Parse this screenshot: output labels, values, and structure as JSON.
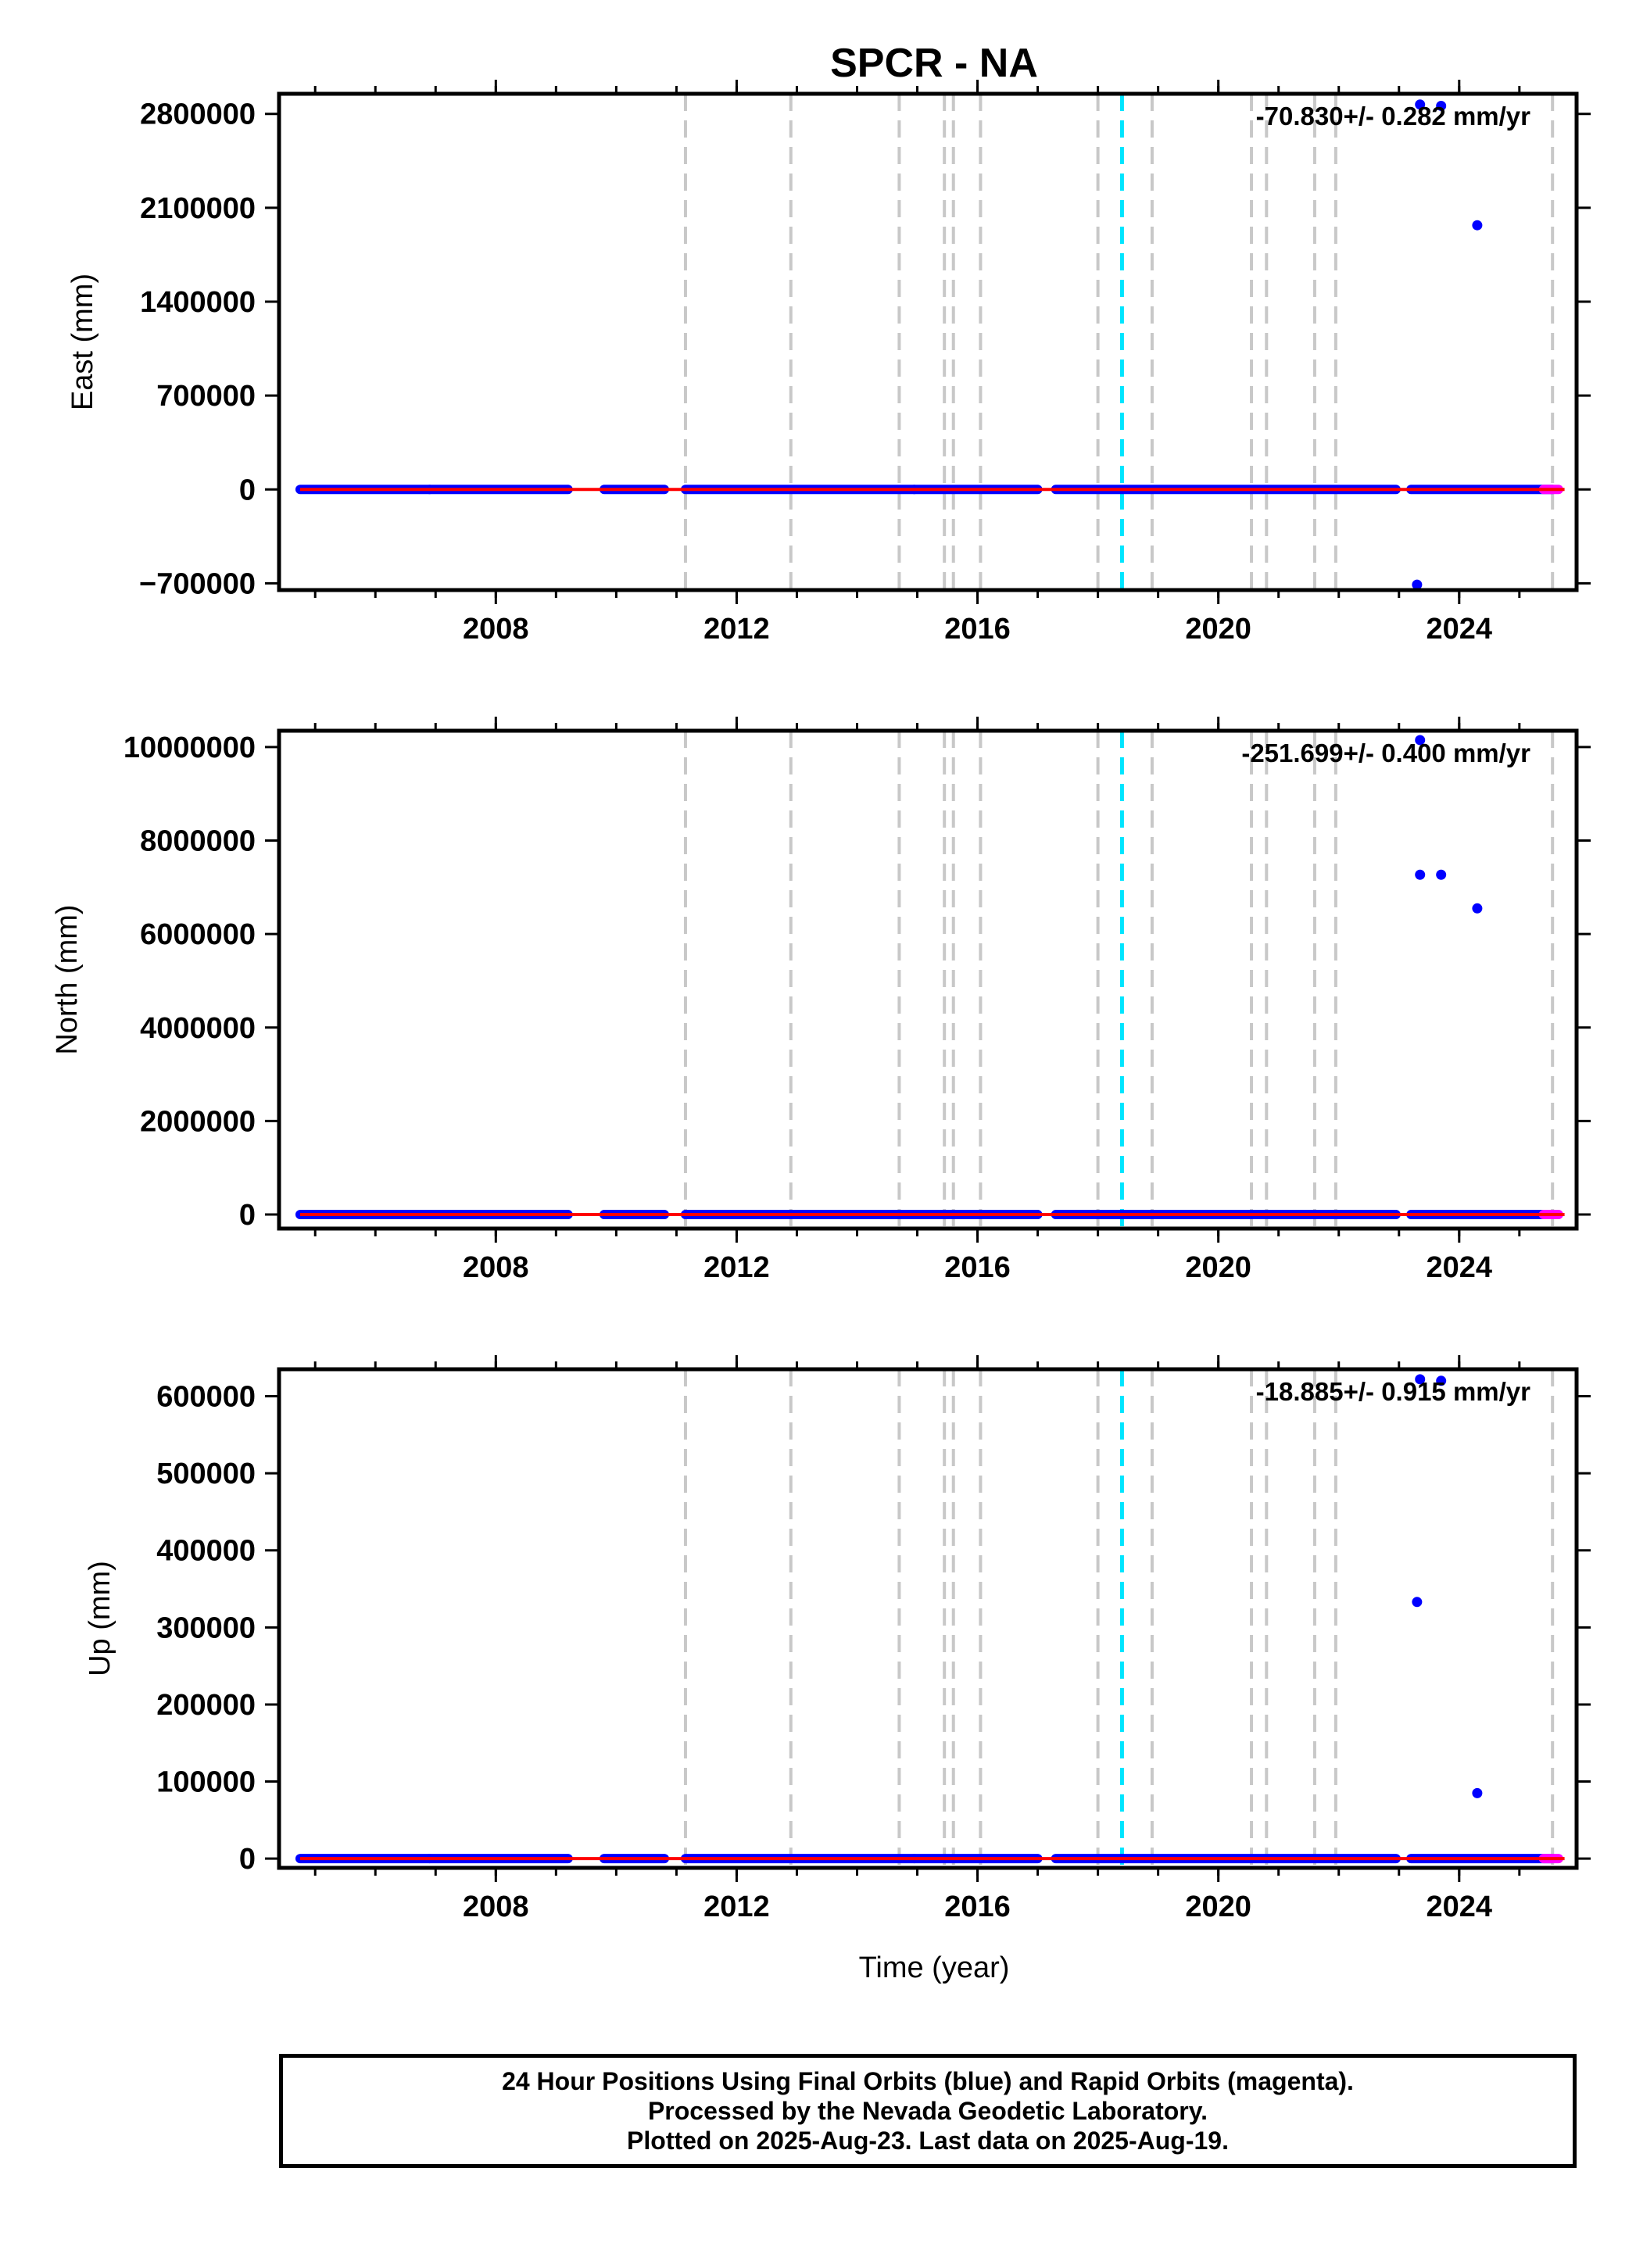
{
  "title": "SPCR - NA",
  "footer": {
    "line1": "24 Hour Positions Using Final Orbits (blue) and Rapid Orbits (magenta).",
    "line2": "Processed by the Nevada Geodetic Laboratory.",
    "line3": "Plotted on 2025-Aug-23. Last data on 2025-Aug-19."
  },
  "colors": {
    "final_orbits": "#0000ff",
    "rapid_orbits": "#ff00ff",
    "trend_line": "#ff0000",
    "steps": "#c8c8c8",
    "equipment_change": "#00e5ff"
  },
  "chart_data": [
    {
      "type": "scatter",
      "panel": "east",
      "ylabel": "East (mm)",
      "xlabel": "",
      "xlim": [
        2004.4,
        2025.95
      ],
      "ylim": [
        -750000,
        2950000
      ],
      "y_ticks": [
        -700000,
        0,
        700000,
        1400000,
        2100000,
        2800000
      ],
      "y_tick_labels": [
        "−700000",
        "0",
        "700000",
        "1400000",
        "2100000",
        "2800000"
      ],
      "x_ticks": [
        2008,
        2012,
        2016,
        2020,
        2024
      ],
      "x_tick_labels": [
        "2008",
        "2012",
        "2016",
        "2020",
        "2024"
      ],
      "annotation": "-70.830+/- 0.282 mm/yr",
      "outliers": [
        [
          2023.35,
          2870000
        ],
        [
          2023.7,
          2860000
        ],
        [
          2024.3,
          1970000
        ],
        [
          2023.3,
          -710000
        ]
      ]
    },
    {
      "type": "scatter",
      "panel": "north",
      "ylabel": "North (mm)",
      "xlabel": "",
      "xlim": [
        2004.4,
        2025.95
      ],
      "ylim": [
        -300000,
        10350000
      ],
      "y_ticks": [
        0,
        2000000,
        4000000,
        6000000,
        8000000,
        10000000
      ],
      "y_tick_labels": [
        "0",
        "2000000",
        "4000000",
        "6000000",
        "8000000",
        "10000000"
      ],
      "x_ticks": [
        2008,
        2012,
        2016,
        2020,
        2024
      ],
      "x_tick_labels": [
        "2008",
        "2012",
        "2016",
        "2020",
        "2024"
      ],
      "annotation": "-251.699+/- 0.400 mm/yr",
      "outliers": [
        [
          2023.35,
          10150000
        ],
        [
          2023.35,
          7270000
        ],
        [
          2023.7,
          7270000
        ],
        [
          2024.3,
          6550000
        ]
      ]
    },
    {
      "type": "scatter",
      "panel": "up",
      "ylabel": "Up (mm)",
      "xlabel": "Time (year)",
      "xlim": [
        2004.4,
        2025.95
      ],
      "ylim": [
        -12000,
        635000
      ],
      "y_ticks": [
        0,
        100000,
        200000,
        300000,
        400000,
        500000,
        600000
      ],
      "y_tick_labels": [
        "0",
        "100000",
        "200000",
        "300000",
        "400000",
        "500000",
        "600000"
      ],
      "x_ticks": [
        2008,
        2012,
        2016,
        2020,
        2024
      ],
      "x_tick_labels": [
        "2008",
        "2012",
        "2016",
        "2020",
        "2024"
      ],
      "annotation": "-18.885+/- 0.915 mm/yr",
      "outliers": [
        [
          2023.35,
          622000
        ],
        [
          2023.7,
          620000
        ],
        [
          2023.3,
          333000
        ],
        [
          2024.3,
          85000
        ]
      ]
    }
  ],
  "series_common": {
    "trend_x": [
      2004.75,
      2025.75
    ],
    "data_segments": [
      [
        2004.75,
        2006.9
      ],
      [
        2006.9,
        2009.2
      ],
      [
        2009.8,
        2010.8
      ],
      [
        2011.15,
        2014.95
      ],
      [
        2014.95,
        2017.0
      ],
      [
        2017.3,
        2022.95
      ],
      [
        2023.2,
        2025.55
      ]
    ],
    "rapid_x": [
      2025.4,
      2025.65
    ],
    "step_lines": [
      2011.15,
      2012.9,
      2014.7,
      2015.45,
      2015.6,
      2016.05,
      2018.0,
      2018.9,
      2020.55,
      2020.8,
      2021.6,
      2021.95,
      2025.55
    ],
    "equipment_line": 2018.4
  }
}
